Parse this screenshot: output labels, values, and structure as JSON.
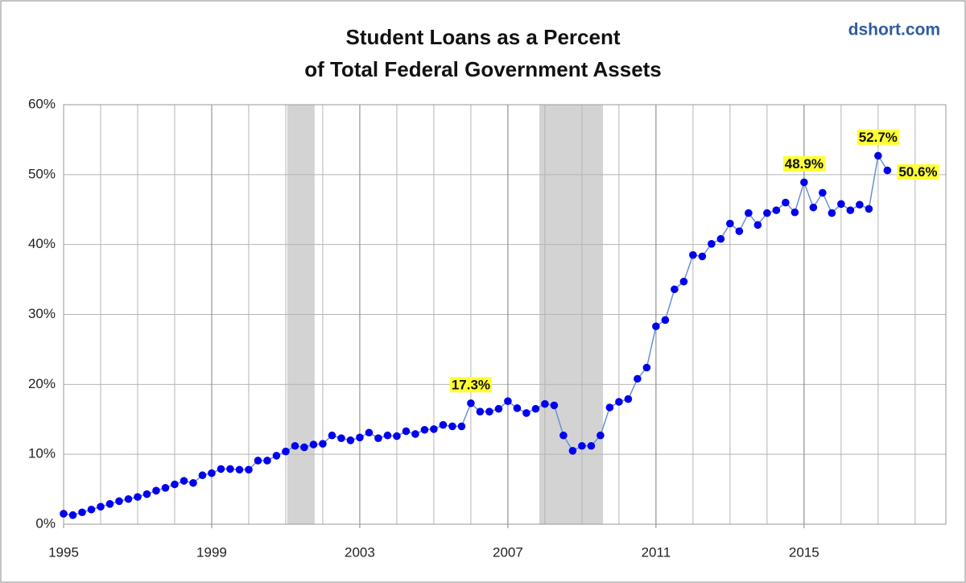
{
  "chart_data": {
    "type": "line",
    "title": "Student Loans as a Percent",
    "subtitle": "of Total Federal Government Assets",
    "source": "dshort.com",
    "x": [
      1995,
      1995.25,
      1995.5,
      1995.75,
      1996,
      1996.25,
      1996.5,
      1996.75,
      1997,
      1997.25,
      1997.5,
      1997.75,
      1998,
      1998.25,
      1998.5,
      1998.75,
      1999,
      1999.25,
      1999.5,
      1999.75,
      2000,
      2000.25,
      2000.5,
      2000.75,
      2001,
      2001.25,
      2001.5,
      2001.75,
      2002,
      2002.25,
      2002.5,
      2002.75,
      2003,
      2003.25,
      2003.5,
      2003.75,
      2004,
      2004.25,
      2004.5,
      2004.75,
      2005,
      2005.25,
      2005.5,
      2005.75,
      2006,
      2006.25,
      2006.5,
      2006.75,
      2007,
      2007.25,
      2007.5,
      2007.75,
      2008,
      2008.25,
      2008.5,
      2008.75,
      2009,
      2009.25,
      2009.5,
      2009.75,
      2010,
      2010.25,
      2010.5,
      2010.75,
      2011,
      2011.25,
      2011.5,
      2011.75,
      2012,
      2012.25,
      2012.5,
      2012.75,
      2013,
      2013.25,
      2013.5,
      2013.75,
      2014,
      2014.25,
      2014.5,
      2014.75,
      2015,
      2015.25,
      2015.5,
      2015.75,
      2016,
      2016.25,
      2016.5,
      2016.75,
      2017,
      2017.25
    ],
    "series": [
      {
        "name": "Student Loans as a Percent of Total Federal Government Assets",
        "color": "#0000ee",
        "line_color": "#6b8fd6",
        "values": [
          1.5,
          1.3,
          1.7,
          2.1,
          2.5,
          2.9,
          3.3,
          3.6,
          3.9,
          4.3,
          4.8,
          5.2,
          5.7,
          6.2,
          5.9,
          7.0,
          7.3,
          7.9,
          7.9,
          7.8,
          7.8,
          9.1,
          9.1,
          9.8,
          10.4,
          11.2,
          11.0,
          11.4,
          11.5,
          12.7,
          12.3,
          12.0,
          12.4,
          13.1,
          12.3,
          12.7,
          12.6,
          13.3,
          12.9,
          13.5,
          13.6,
          14.2,
          14.0,
          14.0,
          17.3,
          16.1,
          16.1,
          16.5,
          17.6,
          16.6,
          15.9,
          16.5,
          17.2,
          17.0,
          12.7,
          10.5,
          11.2,
          11.2,
          12.7,
          16.7,
          17.5,
          17.9,
          20.8,
          22.4,
          28.3,
          29.2,
          33.6,
          34.7,
          38.5,
          38.3,
          40.1,
          40.8,
          43.0,
          41.9,
          44.5,
          42.8,
          44.5,
          44.9,
          46.0,
          44.6,
          48.9,
          45.3,
          47.4,
          44.5,
          45.8,
          44.9,
          45.7,
          45.1,
          52.7,
          50.6
        ],
        "value_labels": [
          null,
          null,
          null,
          null,
          null,
          null,
          null,
          null,
          null,
          null,
          null,
          null,
          null,
          null,
          null,
          null,
          null,
          null,
          null,
          null,
          null,
          null,
          null,
          null,
          null,
          null,
          null,
          null,
          null,
          null,
          null,
          null,
          null,
          null,
          null,
          null,
          null,
          null,
          null,
          null,
          null,
          null,
          null,
          null,
          "17.3%",
          null,
          null,
          null,
          null,
          null,
          null,
          null,
          null,
          null,
          null,
          null,
          null,
          null,
          null,
          null,
          null,
          null,
          null,
          null,
          null,
          null,
          null,
          null,
          null,
          null,
          null,
          null,
          null,
          null,
          null,
          null,
          null,
          null,
          null,
          null,
          "48.9%",
          null,
          null,
          null,
          null,
          null,
          null,
          null,
          "52.7%",
          "50.6%"
        ]
      }
    ],
    "shaded_ranges": [
      [
        2001.04,
        2001.78
      ],
      [
        2007.85,
        2009.57
      ]
    ],
    "shade_color": "#d3d3d3",
    "xlim": [
      1995,
      2018.83
    ],
    "xticks": [
      1995,
      1999,
      2003,
      2007,
      2011,
      2015
    ],
    "xgrid": [
      1996,
      1997,
      1998,
      1999,
      2000,
      2001,
      2002,
      2003,
      2004,
      2005,
      2006,
      2007,
      2008,
      2009,
      2010,
      2011,
      2012,
      2013,
      2014,
      2015,
      2016,
      2017,
      2018
    ],
    "ylim": [
      0,
      60
    ],
    "yticks": [
      {
        "value": 0,
        "label": "0%"
      },
      {
        "value": 10,
        "label": "10%"
      },
      {
        "value": 20,
        "label": "20%"
      },
      {
        "value": 30,
        "label": "30%"
      },
      {
        "value": 40,
        "label": "40%"
      },
      {
        "value": 50,
        "label": "50%"
      },
      {
        "value": 60,
        "label": "60%"
      }
    ],
    "grid": true
  }
}
